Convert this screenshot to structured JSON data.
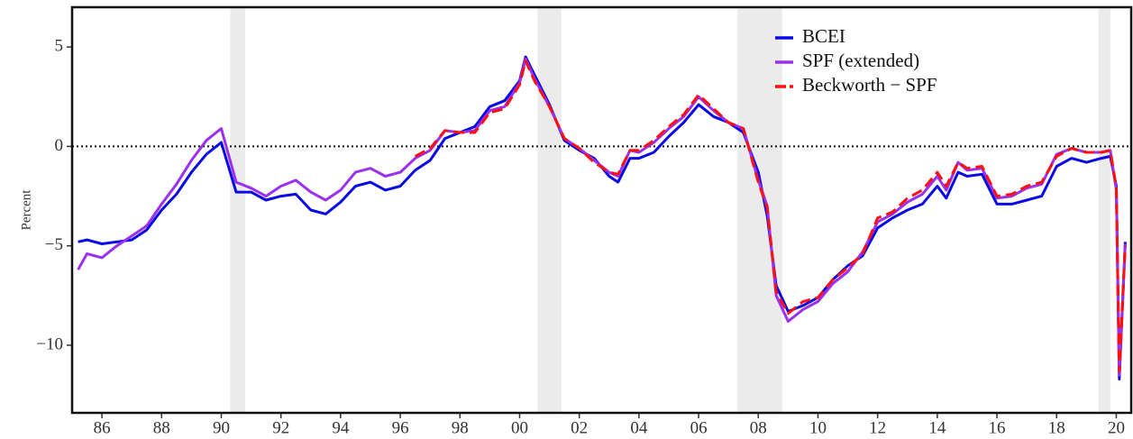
{
  "chart_data": {
    "type": "line",
    "y_label": "Percent",
    "x": [
      1985.2,
      1985.5,
      1986,
      1986.5,
      1987,
      1987.5,
      1988,
      1988.5,
      1989,
      1989.5,
      1990,
      1990.5,
      1991,
      1991.5,
      1992,
      1992.5,
      1993,
      1993.5,
      1994,
      1994.5,
      1995,
      1995.5,
      1996,
      1996.5,
      1997,
      1997.5,
      1998,
      1998.5,
      1999,
      1999.5,
      2000,
      2000.2,
      2000.5,
      2001,
      2001.5,
      2002,
      2002.5,
      2003,
      2003.3,
      2003.7,
      2004,
      2004.5,
      2005,
      2005.5,
      2006,
      2006.5,
      2007,
      2007.5,
      2008,
      2008.3,
      2008.6,
      2009,
      2009.5,
      2010,
      2010.5,
      2011,
      2011.5,
      2012,
      2012.5,
      2013,
      2013.5,
      2014,
      2014.3,
      2014.7,
      2015,
      2015.5,
      2016,
      2016.5,
      2017,
      2017.5,
      2018,
      2018.5,
      2019,
      2019.5,
      2019.8,
      2020.0,
      2020.1,
      2020.3
    ],
    "series": [
      {
        "name": "BCEI",
        "color": "#0a0ae6",
        "dashed": false,
        "values": [
          -4.8,
          -4.7,
          -4.9,
          -4.8,
          -4.7,
          -4.2,
          -3.2,
          -2.4,
          -1.3,
          -0.4,
          0.2,
          -2.3,
          -2.3,
          -2.7,
          -2.5,
          -2.4,
          -3.2,
          -3.4,
          -2.8,
          -2.0,
          -1.8,
          -2.2,
          -2.0,
          -1.2,
          -0.7,
          0.4,
          0.7,
          1.0,
          2.0,
          2.3,
          3.3,
          4.5,
          3.6,
          2.1,
          0.3,
          -0.2,
          -0.6,
          -1.5,
          -1.8,
          -0.6,
          -0.6,
          -0.3,
          0.5,
          1.2,
          2.1,
          1.5,
          1.2,
          0.7,
          -1.3,
          -3.5,
          -7.0,
          -8.3,
          -8.0,
          -7.6,
          -6.7,
          -6.0,
          -5.5,
          -4.1,
          -3.6,
          -3.2,
          -2.9,
          -2.0,
          -2.6,
          -1.3,
          -1.5,
          -1.4,
          -2.9,
          -2.9,
          -2.7,
          -2.5,
          -1.0,
          -0.6,
          -0.8,
          -0.6,
          -0.5,
          -2.0,
          -11.7,
          -4.8
        ]
      },
      {
        "name": "SPF (extended)",
        "color": "#9b30f0",
        "dashed": false,
        "values": [
          -6.2,
          -5.4,
          -5.6,
          -5.0,
          -4.5,
          -4.0,
          -2.9,
          -1.9,
          -0.7,
          0.3,
          0.9,
          -1.8,
          -2.1,
          -2.5,
          -2.0,
          -1.7,
          -2.3,
          -2.7,
          -2.2,
          -1.3,
          -1.1,
          -1.5,
          -1.3,
          -0.6,
          -0.2,
          0.8,
          0.7,
          0.8,
          1.8,
          2.0,
          3.2,
          4.4,
          3.4,
          2.0,
          0.4,
          -0.1,
          -0.7,
          -1.3,
          -1.5,
          -0.2,
          -0.3,
          0.2,
          0.9,
          1.5,
          2.5,
          1.8,
          1.2,
          0.9,
          -1.7,
          -3.0,
          -7.5,
          -8.8,
          -8.2,
          -7.8,
          -6.9,
          -6.3,
          -5.3,
          -3.8,
          -3.4,
          -2.8,
          -2.4,
          -1.5,
          -2.2,
          -0.8,
          -1.2,
          -1.1,
          -2.6,
          -2.5,
          -2.1,
          -1.9,
          -0.4,
          -0.1,
          -0.3,
          -0.3,
          -0.2,
          -2.2,
          -11.5,
          -4.9
        ]
      },
      {
        "name": "Beckworth − SPF",
        "color": "#ff1010",
        "dashed": true,
        "values": [
          null,
          null,
          null,
          null,
          null,
          null,
          null,
          null,
          null,
          null,
          null,
          null,
          null,
          null,
          null,
          null,
          null,
          null,
          null,
          null,
          null,
          null,
          null,
          -0.5,
          -0.1,
          0.8,
          0.7,
          0.7,
          1.7,
          1.9,
          3.1,
          4.3,
          3.3,
          2.0,
          0.4,
          -0.1,
          -0.8,
          -1.3,
          -1.4,
          -0.2,
          -0.2,
          0.3,
          1.0,
          1.6,
          2.6,
          1.9,
          1.2,
          0.9,
          -1.8,
          -3.1,
          -7.3,
          -8.4,
          -7.8,
          -7.6,
          -6.7,
          -6.1,
          -5.4,
          -3.6,
          -3.3,
          -2.6,
          -2.2,
          -1.3,
          -2.0,
          -0.8,
          -1.1,
          -1.0,
          -2.5,
          -2.4,
          -2.0,
          -1.8,
          -0.5,
          -0.1,
          -0.3,
          -0.3,
          -0.2,
          -2.1,
          -11.3,
          -5.0
        ]
      }
    ],
    "recessions": [
      [
        1990.3,
        1990.8
      ],
      [
        2000.6,
        2001.4
      ],
      [
        2007.3,
        2008.8
      ],
      [
        2019.4,
        2019.8
      ]
    ],
    "hline": 0,
    "xlim": [
      1985.0,
      2020.5
    ],
    "ylim": [
      -13.4,
      7
    ],
    "xticks": [
      {
        "value": 1986,
        "label": "86"
      },
      {
        "value": 1988,
        "label": "88"
      },
      {
        "value": 1990,
        "label": "90"
      },
      {
        "value": 1992,
        "label": "92"
      },
      {
        "value": 1994,
        "label": "94"
      },
      {
        "value": 1996,
        "label": "96"
      },
      {
        "value": 1998,
        "label": "98"
      },
      {
        "value": 2000,
        "label": "00"
      },
      {
        "value": 2002,
        "label": "02"
      },
      {
        "value": 2004,
        "label": "04"
      },
      {
        "value": 2006,
        "label": "06"
      },
      {
        "value": 2008,
        "label": "08"
      },
      {
        "value": 2010,
        "label": "10"
      },
      {
        "value": 2012,
        "label": "12"
      },
      {
        "value": 2014,
        "label": "14"
      },
      {
        "value": 2016,
        "label": "16"
      },
      {
        "value": 2018,
        "label": "18"
      },
      {
        "value": 2020,
        "label": "20"
      }
    ],
    "yticks": [
      {
        "value": -10,
        "label": "−10"
      },
      {
        "value": -5,
        "label": "−5"
      },
      0,
      5
    ],
    "legend": "top-right"
  }
}
